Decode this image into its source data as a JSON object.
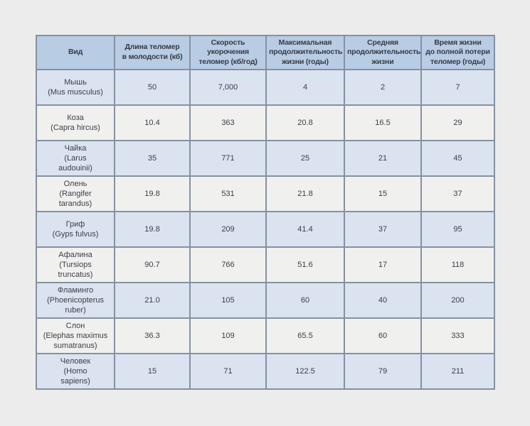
{
  "colors": {
    "page_bg": "#ececec",
    "header_bg": "#b8cce4",
    "band_row_bg": "#dbe3f0",
    "plain_row_bg": "#f0f0ee",
    "inner_border": "#8591a1",
    "outer_border": "#50596a",
    "text": "#3c3e47"
  },
  "chart_data": {
    "type": "table",
    "title": "",
    "columns": [
      "Вид",
      "Длина теломер\nв молодости (кб)",
      "Скорость\nукорочения\nтеломер (кб/год)",
      "Максимальная\nпродолжительность\nжизни (годы)",
      "Средняя\nпродолжительность\nжизни",
      "Время жизни\nдо полной потери\nтеломер (годы)"
    ],
    "rows": [
      {
        "species": "Мышь",
        "latin": "(Mus musculus)",
        "values": [
          "50",
          "7,000",
          "4",
          "2",
          "7"
        ]
      },
      {
        "species": "Коза",
        "latin": "(Capra hircus)",
        "values": [
          "10.4",
          "363",
          "20.8",
          "16.5",
          "29"
        ]
      },
      {
        "species": "Чайка",
        "latin": "(Larus\naudouinii)",
        "values": [
          "35",
          "771",
          "25",
          "21",
          "45"
        ]
      },
      {
        "species": "Олень",
        "latin": "(Rangifer\ntarandus)",
        "values": [
          "19.8",
          "531",
          "21.8",
          "15",
          "37"
        ]
      },
      {
        "species": "Гриф",
        "latin": "(Gyps fulvus)",
        "values": [
          "19.8",
          "209",
          "41.4",
          "37",
          "95"
        ]
      },
      {
        "species": "Афалина",
        "latin": "(Tursiops\ntruncatus)",
        "values": [
          "90.7",
          "766",
          "51.6",
          "17",
          "118"
        ]
      },
      {
        "species": "Фламинго",
        "latin": "(Phoenicopterus\nruber)",
        "values": [
          "21.0",
          "105",
          "60",
          "40",
          "200"
        ]
      },
      {
        "species": "Слон",
        "latin": "(Elephas maximus\nsumatranus)",
        "values": [
          "36.3",
          "109",
          "65.5",
          "60",
          "333"
        ]
      },
      {
        "species": "Человек",
        "latin": "(Homo\nsapiens)",
        "values": [
          "15",
          "71",
          "122.5",
          "79",
          "211"
        ]
      }
    ]
  }
}
